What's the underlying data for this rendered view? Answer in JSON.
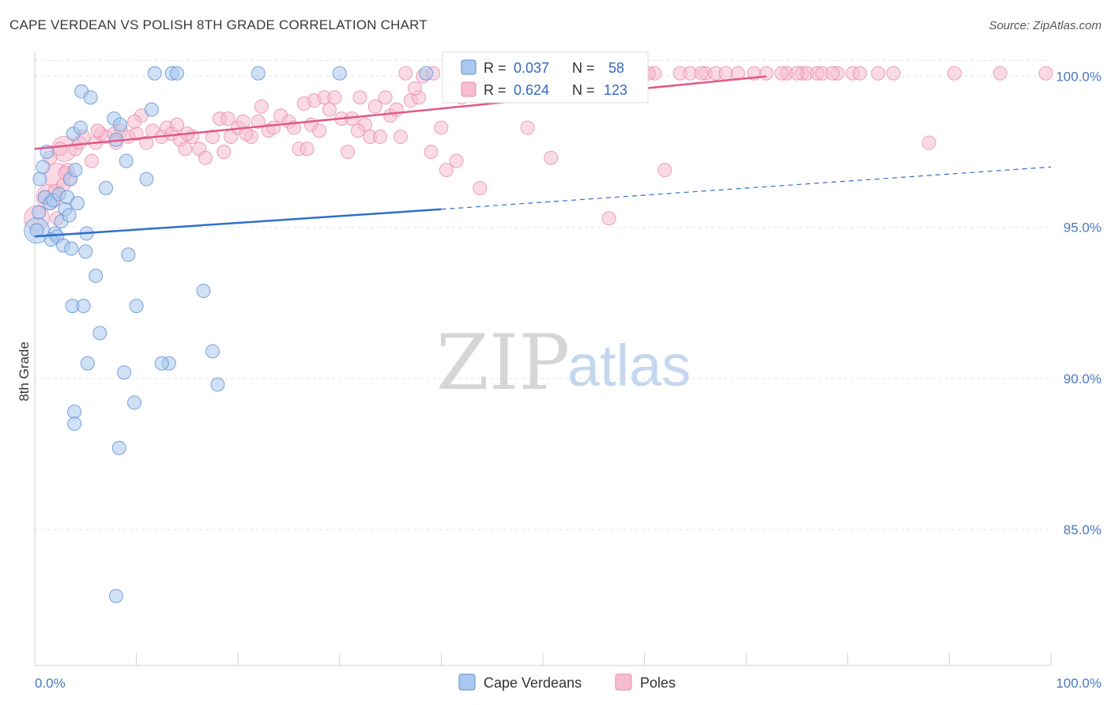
{
  "header": {
    "title": "CAPE VERDEAN VS POLISH 8TH GRADE CORRELATION CHART",
    "source": "Source: ZipAtlas.com"
  },
  "watermark": {
    "zip": "ZIP",
    "atlas": "atlas"
  },
  "colors": {
    "blue_fill": "#a9c8ef",
    "blue_stroke": "#5b8fd6",
    "blue_line": "#2f6fcb",
    "pink_fill": "#f6bdd0",
    "pink_stroke": "#e88aab",
    "pink_line": "#e2578a",
    "grid": "#e2e2e2",
    "tick_label": "#4a78c2"
  },
  "chart_data": {
    "type": "scatter",
    "title": "CAPE VERDEAN VS POLISH 8TH GRADE CORRELATION CHART",
    "xlabel": "",
    "ylabel": "8th Grade",
    "xlim": [
      0,
      100
    ],
    "ylim": [
      80.5,
      100.8
    ],
    "x_tick_labels": {
      "left": "0.0%",
      "right": "100.0%"
    },
    "y_ticks": [
      {
        "value": 100,
        "label": "100.0%"
      },
      {
        "value": 95,
        "label": "95.0%"
      },
      {
        "value": 90,
        "label": "90.0%"
      },
      {
        "value": 85,
        "label": "85.0%"
      }
    ],
    "grid": true,
    "legend_position": "top-center",
    "series": [
      {
        "name": "Cape Verdeans",
        "legend": {
          "r_label": "R = ",
          "r_value": "0.037",
          "n_label": "N = ",
          "n_value": "58"
        },
        "trend": {
          "x0": 0,
          "y0": 94.7,
          "x1": 40,
          "y1": 95.6,
          "dash_x1": 100,
          "dash_y1": 97.0
        },
        "points": [
          [
            0.2,
            94.9
          ],
          [
            0.4,
            95.5
          ],
          [
            0.5,
            96.6
          ],
          [
            0.8,
            97.0
          ],
          [
            1.0,
            96.0
          ],
          [
            1.2,
            97.5
          ],
          [
            1.5,
            95.8
          ],
          [
            1.8,
            95.9
          ],
          [
            2.0,
            94.8
          ],
          [
            1.6,
            94.6
          ],
          [
            2.2,
            94.7
          ],
          [
            2.6,
            95.2
          ],
          [
            2.4,
            96.1
          ],
          [
            3.0,
            95.6
          ],
          [
            3.2,
            96.0
          ],
          [
            2.8,
            94.4
          ],
          [
            3.5,
            96.6
          ],
          [
            3.4,
            95.4
          ],
          [
            3.6,
            94.3
          ],
          [
            4.0,
            96.9
          ],
          [
            4.2,
            95.8
          ],
          [
            3.8,
            98.1
          ],
          [
            4.5,
            98.3
          ],
          [
            4.6,
            99.5
          ],
          [
            5.1,
            94.8
          ],
          [
            5.0,
            94.2
          ],
          [
            5.5,
            99.3
          ],
          [
            6.0,
            93.4
          ],
          [
            6.4,
            91.5
          ],
          [
            3.7,
            92.4
          ],
          [
            4.8,
            92.4
          ],
          [
            5.2,
            90.5
          ],
          [
            7.0,
            96.3
          ],
          [
            7.8,
            98.6
          ],
          [
            8.0,
            97.9
          ],
          [
            8.4,
            98.4
          ],
          [
            9.0,
            97.2
          ],
          [
            9.2,
            94.1
          ],
          [
            10.0,
            92.4
          ],
          [
            8.8,
            90.2
          ],
          [
            9.8,
            89.2
          ],
          [
            11.0,
            96.6
          ],
          [
            11.5,
            98.9
          ],
          [
            11.8,
            100.1
          ],
          [
            13.5,
            100.1
          ],
          [
            13.2,
            90.5
          ],
          [
            12.5,
            90.5
          ],
          [
            14.0,
            100.1
          ],
          [
            16.6,
            92.9
          ],
          [
            17.5,
            90.9
          ],
          [
            18.0,
            89.8
          ],
          [
            22.0,
            100.1
          ],
          [
            30.0,
            100.1
          ],
          [
            38.5,
            100.1
          ],
          [
            3.9,
            88.9
          ],
          [
            3.9,
            88.5
          ],
          [
            8.3,
            87.7
          ],
          [
            8.0,
            82.8
          ]
        ],
        "large_points": [
          [
            0.2,
            94.9
          ]
        ]
      },
      {
        "name": "Poles",
        "legend": {
          "r_label": "R = ",
          "r_value": "0.624",
          "n_label": "N = ",
          "n_value": "123"
        },
        "trend": {
          "x0": 0,
          "y0": 97.6,
          "x1": 72,
          "y1": 100.0
        },
        "points": [
          [
            1.5,
            97.3
          ],
          [
            2.0,
            96.2
          ],
          [
            2.2,
            95.3
          ],
          [
            2.8,
            96.4
          ],
          [
            3.2,
            96.9
          ],
          [
            3.5,
            96.6
          ],
          [
            4.0,
            97.6
          ],
          [
            4.4,
            97.8
          ],
          [
            4.8,
            98.0
          ],
          [
            5.6,
            97.2
          ],
          [
            6.0,
            97.8
          ],
          [
            6.5,
            98.1
          ],
          [
            7.0,
            98.0
          ],
          [
            7.8,
            98.1
          ],
          [
            8.0,
            97.8
          ],
          [
            8.5,
            98.2
          ],
          [
            9.2,
            98.0
          ],
          [
            10.0,
            98.1
          ],
          [
            10.5,
            98.7
          ],
          [
            11.0,
            97.8
          ],
          [
            11.6,
            98.2
          ],
          [
            12.5,
            98.0
          ],
          [
            13.0,
            98.3
          ],
          [
            13.5,
            98.1
          ],
          [
            14.0,
            98.4
          ],
          [
            14.3,
            97.9
          ],
          [
            14.8,
            97.6
          ],
          [
            15.5,
            98.0
          ],
          [
            16.2,
            97.6
          ],
          [
            16.8,
            97.3
          ],
          [
            17.5,
            98.0
          ],
          [
            18.2,
            98.6
          ],
          [
            18.6,
            97.5
          ],
          [
            19.0,
            98.6
          ],
          [
            19.3,
            98.0
          ],
          [
            20.0,
            98.3
          ],
          [
            20.5,
            98.5
          ],
          [
            21.3,
            98.0
          ],
          [
            22.0,
            98.5
          ],
          [
            22.3,
            99.0
          ],
          [
            23.0,
            98.2
          ],
          [
            23.5,
            98.3
          ],
          [
            24.2,
            98.7
          ],
          [
            25.0,
            98.5
          ],
          [
            25.5,
            98.3
          ],
          [
            26.0,
            97.6
          ],
          [
            26.8,
            97.6
          ],
          [
            27.2,
            98.4
          ],
          [
            27.5,
            99.2
          ],
          [
            28.0,
            98.2
          ],
          [
            28.5,
            99.3
          ],
          [
            29.0,
            98.9
          ],
          [
            29.5,
            99.3
          ],
          [
            30.2,
            98.6
          ],
          [
            30.8,
            97.5
          ],
          [
            31.2,
            98.6
          ],
          [
            32.0,
            99.3
          ],
          [
            32.5,
            98.4
          ],
          [
            33.0,
            98.0
          ],
          [
            33.5,
            99.0
          ],
          [
            34.0,
            98.0
          ],
          [
            34.5,
            99.3
          ],
          [
            35.0,
            98.7
          ],
          [
            35.6,
            98.9
          ],
          [
            36.0,
            98.0
          ],
          [
            36.5,
            100.1
          ],
          [
            37.0,
            99.2
          ],
          [
            37.8,
            99.3
          ],
          [
            38.2,
            100.0
          ],
          [
            39.0,
            97.5
          ],
          [
            39.2,
            100.1
          ],
          [
            40.0,
            98.3
          ],
          [
            40.5,
            96.9
          ],
          [
            41.0,
            100.1
          ],
          [
            41.5,
            97.2
          ],
          [
            42.0,
            99.3
          ],
          [
            42.6,
            100.1
          ],
          [
            43.2,
            100.0
          ],
          [
            43.8,
            96.3
          ],
          [
            44.0,
            99.8
          ],
          [
            45.0,
            100.1
          ],
          [
            46.0,
            100.1
          ],
          [
            47.0,
            100.1
          ],
          [
            48.0,
            100.1
          ],
          [
            48.5,
            98.3
          ],
          [
            49.5,
            100.1
          ],
          [
            50.2,
            100.1
          ],
          [
            50.8,
            97.3
          ],
          [
            52.0,
            100.1
          ],
          [
            53.0,
            100.1
          ],
          [
            54.5,
            100.1
          ],
          [
            55.0,
            100.1
          ],
          [
            56.0,
            100.0
          ],
          [
            57.0,
            100.1
          ],
          [
            58.0,
            100.0
          ],
          [
            59.0,
            100.1
          ],
          [
            60.0,
            100.1
          ],
          [
            61.0,
            100.1
          ],
          [
            62.0,
            96.9
          ],
          [
            63.5,
            100.1
          ],
          [
            64.5,
            100.1
          ],
          [
            66.0,
            100.1
          ],
          [
            67.0,
            100.1
          ],
          [
            68.0,
            100.1
          ],
          [
            69.2,
            100.1
          ],
          [
            70.8,
            100.1
          ],
          [
            72.0,
            100.1
          ],
          [
            74.0,
            100.1
          ],
          [
            75.5,
            100.1
          ],
          [
            76.0,
            100.1
          ],
          [
            77.0,
            100.1
          ],
          [
            77.5,
            100.1
          ],
          [
            79.0,
            100.1
          ],
          [
            80.5,
            100.1
          ],
          [
            83.0,
            100.1
          ],
          [
            88.0,
            97.8
          ],
          [
            99.5,
            100.1
          ],
          [
            6.2,
            98.2
          ],
          [
            9.8,
            98.5
          ],
          [
            15.0,
            98.1
          ],
          [
            20.8,
            98.1
          ],
          [
            26.5,
            99.1
          ],
          [
            31.8,
            98.2
          ],
          [
            37.4,
            99.6
          ],
          [
            44.8,
            100.0
          ],
          [
            51.5,
            100.0
          ],
          [
            52.8,
            99.9
          ],
          [
            53.8,
            100.0
          ],
          [
            54.0,
            100.1
          ],
          [
            55.8,
            100.1
          ],
          [
            60.4,
            100.1
          ],
          [
            65.6,
            100.1
          ],
          [
            73.5,
            100.1
          ],
          [
            75.0,
            100.1
          ],
          [
            78.5,
            100.1
          ],
          [
            81.2,
            100.1
          ],
          [
            84.5,
            100.1
          ],
          [
            90.5,
            100.1
          ],
          [
            95.0,
            100.1
          ],
          [
            56.5,
            95.3
          ],
          [
            3.0,
            96.8
          ],
          [
            1.0,
            96.0
          ],
          [
            2.5,
            97.6
          ]
        ],
        "large_points": [
          [
            0.2,
            95.3
          ],
          [
            1.4,
            96.0
          ],
          [
            2.2,
            96.7
          ],
          [
            2.9,
            97.6
          ]
        ]
      }
    ]
  }
}
